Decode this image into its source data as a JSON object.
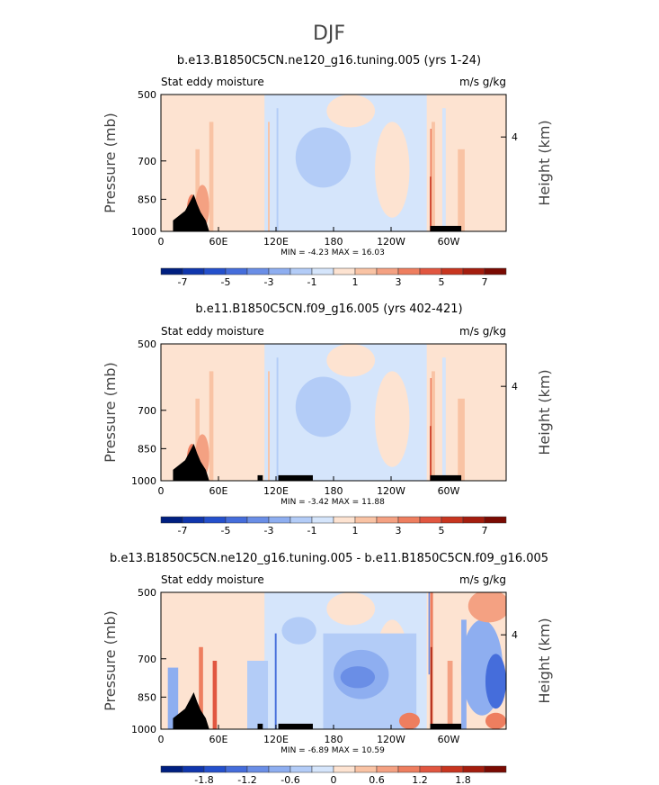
{
  "page_title": "DJF",
  "colors": {
    "land": "#000000",
    "frame": "#000000",
    "pos": [
      "#fde3d1",
      "#f9c3a4",
      "#f4a182",
      "#ee7e5f",
      "#e15640",
      "#c8351f",
      "#a41d0e",
      "#7a0a02"
    ],
    "neg": [
      "#d5e5fb",
      "#b3ccf7",
      "#8eaef0",
      "#6a8ee6",
      "#456ddb",
      "#2450cc",
      "#1036ad",
      "#001f80"
    ]
  },
  "chart_data": [
    {
      "type": "contour",
      "title": "b.e13.B1850C5CN.ne120_g16.tuning.005 (yrs 1-24)",
      "field_label": "Stat eddy moisture",
      "units": "m/s g/kg",
      "ylabel": "Pressure (mb)",
      "ylabel_right": "Height (km)",
      "xticks": [
        "0",
        "60E",
        "120E",
        "180",
        "120W",
        "60W"
      ],
      "yticks": [
        "500",
        "700",
        "850",
        "1000"
      ],
      "right_ticks": [
        "4"
      ],
      "stats": "MIN =   -4.23   MAX =   16.03",
      "colorbar_labels": [
        "-7",
        "-5",
        "-3",
        "-1",
        "1",
        "3",
        "5",
        "7"
      ]
    },
    {
      "type": "contour",
      "title": "b.e11.B1850C5CN.f09_g16.005 (yrs 402-421)",
      "field_label": "Stat eddy moisture",
      "units": "m/s g/kg",
      "ylabel": "Pressure (mb)",
      "ylabel_right": "Height (km)",
      "xticks": [
        "0",
        "60E",
        "120E",
        "180",
        "120W",
        "60W"
      ],
      "yticks": [
        "500",
        "700",
        "850",
        "1000"
      ],
      "right_ticks": [
        "4"
      ],
      "stats": "MIN =   -3.42   MAX =   11.88",
      "colorbar_labels": [
        "-7",
        "-5",
        "-3",
        "-1",
        "1",
        "3",
        "5",
        "7"
      ]
    },
    {
      "type": "contour",
      "title": "b.e13.B1850C5CN.ne120_g16.tuning.005 - b.e11.B1850C5CN.f09_g16.005",
      "field_label": "Stat eddy moisture",
      "units": "m/s g/kg",
      "ylabel": "Pressure (mb)",
      "ylabel_right": "Height (km)",
      "xticks": [
        "0",
        "60E",
        "120E",
        "180",
        "120W",
        "60W"
      ],
      "yticks": [
        "500",
        "700",
        "850",
        "1000"
      ],
      "right_ticks": [
        "4"
      ],
      "stats": "MIN =   -6.89   MAX =   10.59",
      "colorbar_labels": [
        "-1.8",
        "-1.2",
        "-0.6",
        "0",
        "0.6",
        "1.2",
        "1.8"
      ]
    }
  ]
}
